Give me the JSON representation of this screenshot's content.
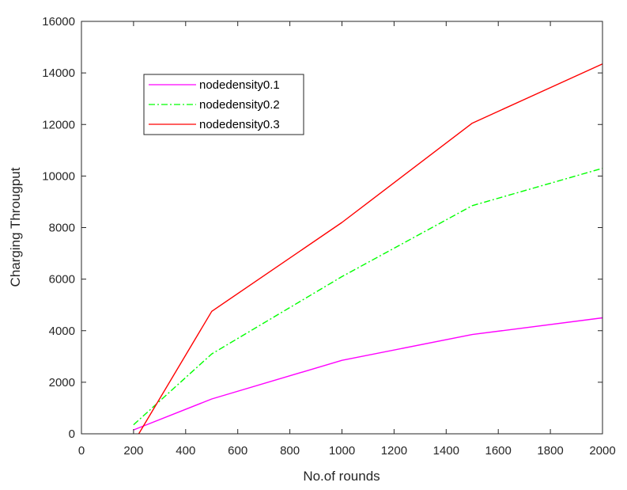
{
  "chart_data": {
    "type": "line",
    "xlabel": "No.of rounds",
    "ylabel": "Charging Througput",
    "xlim": [
      0,
      2000
    ],
    "ylim": [
      0,
      16000
    ],
    "xticks": [
      0,
      200,
      400,
      600,
      800,
      1000,
      1200,
      1400,
      1600,
      1800,
      2000
    ],
    "yticks": [
      0,
      2000,
      4000,
      6000,
      8000,
      10000,
      12000,
      14000,
      16000
    ],
    "grid": false,
    "legend_position": "top-left",
    "series": [
      {
        "name": "nodedensity0.1",
        "color": "#ff00ff",
        "dash": "solid",
        "x": [
          200,
          500,
          1000,
          1500,
          2000
        ],
        "y": [
          150,
          1350,
          2850,
          3850,
          4500
        ]
      },
      {
        "name": "nodedensity0.2",
        "color": "#00ff00",
        "dash": "dashdot",
        "x": [
          200,
          500,
          1000,
          1500,
          2000
        ],
        "y": [
          350,
          3100,
          6100,
          8850,
          10300
        ]
      },
      {
        "name": "nodedensity0.3",
        "color": "#ff0000",
        "dash": "solid",
        "x": [
          220,
          500,
          1000,
          1500,
          2000
        ],
        "y": [
          0,
          4750,
          8200,
          12050,
          14350
        ]
      }
    ]
  }
}
